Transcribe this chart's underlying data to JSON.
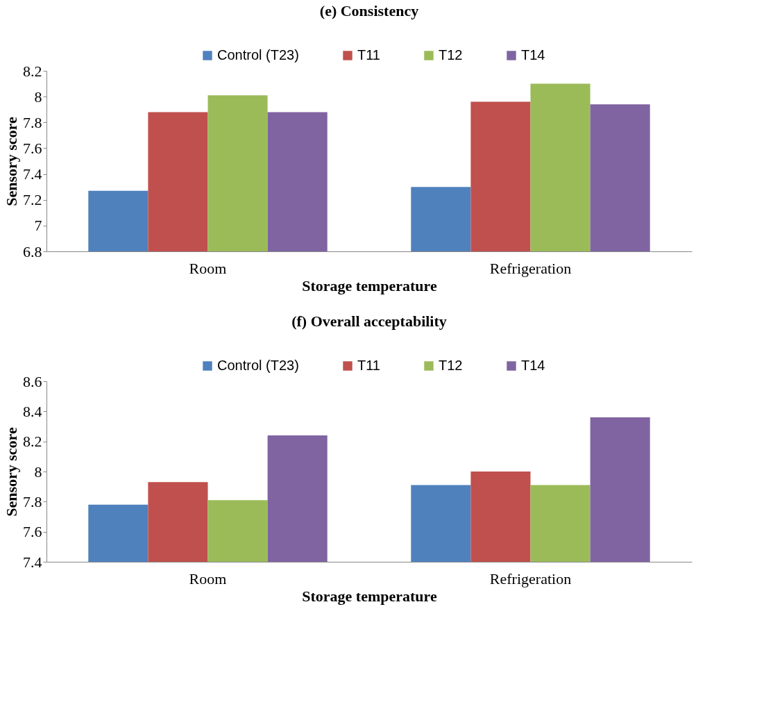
{
  "chart_data": [
    {
      "type": "bar",
      "title": "(e) Consistency",
      "xlabel": "Storage temperature",
      "ylabel": "Sensory score",
      "categories": [
        "Room",
        "Refrigeration"
      ],
      "ylim": [
        6.8,
        8.2
      ],
      "yticks": [
        6.8,
        7,
        7.2,
        7.4,
        7.6,
        7.8,
        8,
        8.2
      ],
      "grid": false,
      "legend": "top",
      "series": [
        {
          "name": "Control (T23)",
          "color": "#4f81bd",
          "values": [
            7.27,
            7.3
          ]
        },
        {
          "name": "T11",
          "color": "#c0504d",
          "values": [
            7.88,
            7.96
          ]
        },
        {
          "name": "T12",
          "color": "#9bbb59",
          "values": [
            8.01,
            8.1
          ]
        },
        {
          "name": "T14",
          "color": "#8064a2",
          "values": [
            7.88,
            7.94
          ]
        }
      ]
    },
    {
      "type": "bar",
      "title": "(f) Overall acceptability",
      "xlabel": "Storage temperature",
      "ylabel": "Sensory score",
      "categories": [
        "Room",
        "Refrigeration"
      ],
      "ylim": [
        7.4,
        8.6
      ],
      "yticks": [
        7.4,
        7.6,
        7.8,
        8,
        8.2,
        8.4,
        8.6
      ],
      "grid": false,
      "legend": "top",
      "series": [
        {
          "name": "Control (T23)",
          "color": "#4f81bd",
          "values": [
            7.78,
            7.91
          ]
        },
        {
          "name": "T11",
          "color": "#c0504d",
          "values": [
            7.93,
            8.0
          ]
        },
        {
          "name": "T12",
          "color": "#9bbb59",
          "values": [
            7.81,
            7.91
          ]
        },
        {
          "name": "T14",
          "color": "#8064a2",
          "values": [
            8.24,
            8.36
          ]
        }
      ]
    }
  ]
}
